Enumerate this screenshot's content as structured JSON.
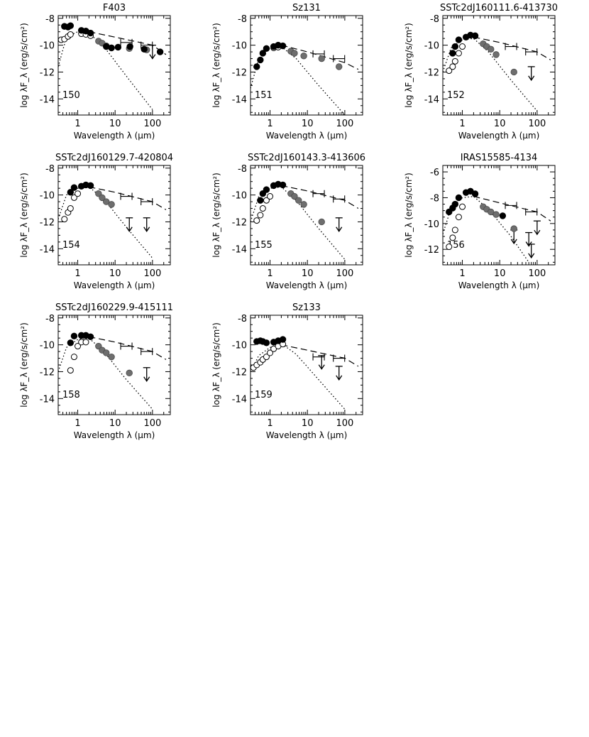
{
  "figure": {
    "xlabel": "Wavelength λ (μm)",
    "ylabel": "log λF_λ (erg/s/cm²)"
  },
  "chart_data": [
    {
      "type": "scatter",
      "title": "F403",
      "panel_number": "150",
      "xlim": [
        0.3,
        300
      ],
      "ylim": [
        -15.2,
        -7.8
      ],
      "xticks": [
        1,
        10,
        100
      ],
      "yticks": [
        -8,
        -10,
        -12,
        -14
      ],
      "observed": [
        [
          0.44,
          -8.6
        ],
        [
          0.55,
          -8.65
        ],
        [
          0.64,
          -8.55
        ],
        [
          1.25,
          -8.9
        ],
        [
          1.65,
          -8.95
        ],
        [
          2.2,
          -9.1
        ],
        [
          5.8,
          -10.1
        ],
        [
          8.0,
          -10.2
        ],
        [
          12,
          -10.15
        ],
        [
          25,
          -10.1
        ],
        [
          60,
          -10.3
        ],
        [
          160,
          -10.5
        ]
      ],
      "dereddened": [
        [
          0.36,
          -9.6
        ],
        [
          0.44,
          -9.55
        ],
        [
          0.55,
          -9.35
        ],
        [
          0.64,
          -9.2
        ],
        [
          1.25,
          -9.15
        ],
        [
          1.65,
          -9.2
        ],
        [
          2.2,
          -9.3
        ]
      ],
      "intermediate": [
        [
          3.6,
          -9.7
        ],
        [
          4.5,
          -9.85
        ],
        [
          5.8,
          -10.05
        ],
        [
          8.0,
          -10.2
        ],
        [
          24,
          -10.25
        ],
        [
          70,
          -10.35
        ]
      ],
      "median_bars": [
        [
          20,
          -9.8
        ],
        [
          70,
          -10.0
        ]
      ],
      "upper_limits": [
        [
          100,
          -10.0
        ]
      ],
      "photosphere": [
        [
          0.3,
          -11.6
        ],
        [
          0.5,
          -9.4
        ],
        [
          1.0,
          -9.0
        ],
        [
          2.0,
          -9.1
        ],
        [
          5,
          -10.1
        ],
        [
          20,
          -12.3
        ],
        [
          100,
          -14.8
        ]
      ],
      "median_line": [
        [
          2.0,
          -9.0
        ],
        [
          10,
          -9.4
        ],
        [
          100,
          -10.0
        ],
        [
          230,
          -10.7
        ]
      ]
    },
    {
      "type": "scatter",
      "title": "Sz131",
      "panel_number": "151",
      "xlim": [
        0.3,
        300
      ],
      "ylim": [
        -15.2,
        -7.8
      ],
      "xticks": [
        1,
        10,
        100
      ],
      "yticks": [
        -8,
        -10,
        -12,
        -14
      ],
      "observed": [
        [
          0.44,
          -11.6
        ],
        [
          0.55,
          -11.1
        ],
        [
          0.64,
          -10.6
        ],
        [
          0.8,
          -10.25
        ],
        [
          1.25,
          -10.1
        ],
        [
          1.65,
          -10.0
        ],
        [
          2.2,
          -10.05
        ]
      ],
      "dereddened": [
        [
          1.25,
          -10.2
        ],
        [
          1.65,
          -10.15
        ]
      ],
      "intermediate": [
        [
          3.6,
          -10.45
        ],
        [
          4.5,
          -10.6
        ],
        [
          8.0,
          -10.8
        ],
        [
          24,
          -11.0
        ],
        [
          70,
          -11.6
        ]
      ],
      "median_bars": [
        [
          20,
          -10.65
        ],
        [
          70,
          -11.0
        ]
      ],
      "upper_limits": [],
      "photosphere": [
        [
          0.3,
          -13.2
        ],
        [
          0.5,
          -11.0
        ],
        [
          1.0,
          -10.2
        ],
        [
          2.0,
          -10.1
        ],
        [
          5,
          -11.0
        ],
        [
          20,
          -13.0
        ],
        [
          100,
          -15.2
        ]
      ],
      "median_line": [
        [
          2.0,
          -10.0
        ],
        [
          10,
          -10.5
        ],
        [
          100,
          -11.3
        ],
        [
          230,
          -11.8
        ]
      ]
    },
    {
      "type": "scatter",
      "title": "SSTc2dJ160111.6-413730",
      "panel_number": "152",
      "xlim": [
        0.3,
        300
      ],
      "ylim": [
        -15.2,
        -7.8
      ],
      "xticks": [
        1,
        10,
        100
      ],
      "yticks": [
        -8,
        -10,
        -12,
        -14
      ],
      "observed": [
        [
          0.55,
          -10.6
        ],
        [
          0.64,
          -10.1
        ],
        [
          0.8,
          -9.6
        ],
        [
          1.25,
          -9.4
        ],
        [
          1.65,
          -9.25
        ],
        [
          2.2,
          -9.3
        ]
      ],
      "dereddened": [
        [
          0.44,
          -11.9
        ],
        [
          0.55,
          -11.6
        ],
        [
          0.64,
          -11.2
        ],
        [
          0.8,
          -10.6
        ],
        [
          1.0,
          -10.1
        ]
      ],
      "intermediate": [
        [
          3.6,
          -9.9
        ],
        [
          4.5,
          -10.1
        ],
        [
          5.8,
          -10.3
        ],
        [
          8.0,
          -10.7
        ],
        [
          24,
          -12.0
        ]
      ],
      "median_bars": [
        [
          20,
          -10.1
        ],
        [
          70,
          -10.5
        ]
      ],
      "upper_limits": [
        [
          70,
          -11.6
        ]
      ],
      "photosphere": [
        [
          0.3,
          -12.0
        ],
        [
          0.5,
          -10.2
        ],
        [
          1.0,
          -9.6
        ],
        [
          2.0,
          -9.5
        ],
        [
          5,
          -10.5
        ],
        [
          20,
          -12.6
        ],
        [
          100,
          -14.9
        ]
      ],
      "median_line": [
        [
          2.0,
          -9.4
        ],
        [
          10,
          -9.8
        ],
        [
          100,
          -10.5
        ],
        [
          230,
          -11.1
        ]
      ]
    },
    {
      "type": "scatter",
      "title": "SSTc2dJ160129.7-420804",
      "panel_number": "154",
      "xlim": [
        0.3,
        300
      ],
      "ylim": [
        -15.2,
        -7.8
      ],
      "xticks": [
        1,
        10,
        100
      ],
      "yticks": [
        -8,
        -10,
        -12,
        -14
      ],
      "observed": [
        [
          0.64,
          -9.8
        ],
        [
          0.8,
          -9.45
        ],
        [
          1.25,
          -9.35
        ],
        [
          1.65,
          -9.25
        ],
        [
          2.2,
          -9.3
        ]
      ],
      "dereddened": [
        [
          0.44,
          -11.8
        ],
        [
          0.55,
          -11.3
        ],
        [
          0.64,
          -11.0
        ],
        [
          0.8,
          -10.2
        ],
        [
          1.0,
          -9.9
        ]
      ],
      "intermediate": [
        [
          3.6,
          -9.9
        ],
        [
          4.5,
          -10.2
        ],
        [
          5.8,
          -10.5
        ],
        [
          8.0,
          -10.7
        ]
      ],
      "median_bars": [
        [
          20,
          -10.1
        ],
        [
          70,
          -10.5
        ]
      ],
      "upper_limits": [
        [
          24,
          -11.7
        ],
        [
          70,
          -11.7
        ]
      ],
      "photosphere": [
        [
          0.3,
          -11.8
        ],
        [
          0.5,
          -10.0
        ],
        [
          1.0,
          -9.5
        ],
        [
          2.0,
          -9.4
        ],
        [
          5,
          -10.3
        ],
        [
          20,
          -12.4
        ],
        [
          100,
          -14.7
        ]
      ],
      "median_line": [
        [
          2.0,
          -9.4
        ],
        [
          10,
          -9.8
        ],
        [
          100,
          -10.5
        ],
        [
          230,
          -11.1
        ]
      ]
    },
    {
      "type": "scatter",
      "title": "SSTc2dJ160143.3-413606",
      "panel_number": "155",
      "xlim": [
        0.3,
        300
      ],
      "ylim": [
        -15.2,
        -7.8
      ],
      "xticks": [
        1,
        10,
        100
      ],
      "yticks": [
        -8,
        -10,
        -12,
        -14
      ],
      "observed": [
        [
          0.55,
          -10.4
        ],
        [
          0.64,
          -9.9
        ],
        [
          0.8,
          -9.6
        ],
        [
          1.25,
          -9.3
        ],
        [
          1.65,
          -9.2
        ],
        [
          2.2,
          -9.25
        ]
      ],
      "dereddened": [
        [
          0.44,
          -11.9
        ],
        [
          0.55,
          -11.5
        ],
        [
          0.64,
          -11.0
        ],
        [
          0.8,
          -10.4
        ],
        [
          1.0,
          -10.1
        ]
      ],
      "intermediate": [
        [
          3.6,
          -9.9
        ],
        [
          4.5,
          -10.1
        ],
        [
          5.8,
          -10.4
        ],
        [
          8.0,
          -10.7
        ],
        [
          24,
          -12.0
        ]
      ],
      "median_bars": [
        [
          20,
          -9.9
        ],
        [
          70,
          -10.3
        ]
      ],
      "upper_limits": [
        [
          70,
          -11.7
        ]
      ],
      "photosphere": [
        [
          0.3,
          -12.0
        ],
        [
          0.5,
          -10.1
        ],
        [
          1.0,
          -9.5
        ],
        [
          2.0,
          -9.4
        ],
        [
          5,
          -10.4
        ],
        [
          20,
          -12.5
        ],
        [
          100,
          -14.8
        ]
      ],
      "median_line": [
        [
          2.0,
          -9.3
        ],
        [
          10,
          -9.7
        ],
        [
          100,
          -10.4
        ],
        [
          230,
          -11.0
        ]
      ]
    },
    {
      "type": "scatter",
      "title": "IRAS15585-4134",
      "panel_number": "156",
      "xlim": [
        0.3,
        300
      ],
      "ylim": [
        -13.2,
        -5.5
      ],
      "xticks": [
        1,
        10,
        100
      ],
      "yticks": [
        -6,
        -8,
        -10,
        -12
      ],
      "observed": [
        [
          0.44,
          -9.1
        ],
        [
          0.55,
          -8.8
        ],
        [
          0.64,
          -8.5
        ],
        [
          0.8,
          -8.0
        ],
        [
          1.25,
          -7.6
        ],
        [
          1.65,
          -7.5
        ],
        [
          2.2,
          -7.7
        ],
        [
          12,
          -9.4
        ]
      ],
      "dereddened": [
        [
          0.44,
          -11.8
        ],
        [
          0.55,
          -11.1
        ],
        [
          0.64,
          -10.5
        ],
        [
          0.8,
          -9.5
        ],
        [
          1.0,
          -8.7
        ]
      ],
      "intermediate": [
        [
          3.6,
          -8.7
        ],
        [
          4.5,
          -8.9
        ],
        [
          5.8,
          -9.1
        ],
        [
          8.0,
          -9.3
        ],
        [
          24,
          -10.4
        ]
      ],
      "median_bars": [
        [
          20,
          -8.6
        ],
        [
          70,
          -9.1
        ]
      ],
      "upper_limits": [
        [
          24,
          -10.5
        ],
        [
          60,
          -10.7
        ],
        [
          70,
          -11.6
        ],
        [
          100,
          -9.8
        ]
      ],
      "photosphere": [
        [
          0.3,
          -10.8
        ],
        [
          0.5,
          -8.8
        ],
        [
          1.0,
          -8.0
        ],
        [
          2.0,
          -7.9
        ],
        [
          5,
          -8.9
        ],
        [
          20,
          -11.0
        ],
        [
          60,
          -13.0
        ]
      ],
      "median_line": [
        [
          2.0,
          -7.9
        ],
        [
          10,
          -8.4
        ],
        [
          100,
          -9.1
        ],
        [
          230,
          -9.8
        ]
      ]
    },
    {
      "type": "scatter",
      "title": "SSTc2dJ160229.9-415111",
      "panel_number": "158",
      "xlim": [
        0.3,
        300
      ],
      "ylim": [
        -15.2,
        -7.8
      ],
      "xticks": [
        1,
        10,
        100
      ],
      "yticks": [
        -8,
        -10,
        -12,
        -14
      ],
      "observed": [
        [
          0.64,
          -9.85
        ],
        [
          0.8,
          -9.35
        ],
        [
          1.25,
          -9.3
        ],
        [
          1.65,
          -9.3
        ],
        [
          2.2,
          -9.4
        ]
      ],
      "dereddened": [
        [
          0.64,
          -11.9
        ],
        [
          0.8,
          -10.9
        ],
        [
          1.0,
          -10.1
        ],
        [
          1.25,
          -9.8
        ],
        [
          1.65,
          -9.8
        ]
      ],
      "intermediate": [
        [
          3.6,
          -10.1
        ],
        [
          4.5,
          -10.4
        ],
        [
          5.8,
          -10.6
        ],
        [
          8.0,
          -10.9
        ],
        [
          24,
          -12.1
        ]
      ],
      "median_bars": [
        [
          20,
          -10.1
        ],
        [
          70,
          -10.5
        ]
      ],
      "upper_limits": [
        [
          70,
          -11.7
        ]
      ],
      "photosphere": [
        [
          0.3,
          -12.0
        ],
        [
          0.5,
          -10.2
        ],
        [
          1.0,
          -9.6
        ],
        [
          2.0,
          -9.5
        ],
        [
          5,
          -10.5
        ],
        [
          20,
          -12.6
        ],
        [
          100,
          -14.8
        ]
      ],
      "median_line": [
        [
          2.0,
          -9.4
        ],
        [
          10,
          -9.8
        ],
        [
          100,
          -10.5
        ],
        [
          230,
          -11.1
        ]
      ]
    },
    {
      "type": "scatter",
      "title": "Sz133",
      "panel_number": "159",
      "xlim": [
        0.3,
        300
      ],
      "ylim": [
        -15.2,
        -7.8
      ],
      "xticks": [
        1,
        10,
        100
      ],
      "yticks": [
        -8,
        -10,
        -12,
        -14
      ],
      "observed": [
        [
          0.44,
          -9.75
        ],
        [
          0.55,
          -9.7
        ],
        [
          0.64,
          -9.75
        ],
        [
          0.8,
          -9.85
        ],
        [
          1.25,
          -9.8
        ],
        [
          1.65,
          -9.7
        ],
        [
          2.2,
          -9.6
        ]
      ],
      "dereddened": [
        [
          0.36,
          -11.7
        ],
        [
          0.44,
          -11.5
        ],
        [
          0.55,
          -11.3
        ],
        [
          0.64,
          -11.1
        ],
        [
          0.8,
          -10.9
        ],
        [
          1.0,
          -10.6
        ],
        [
          1.25,
          -10.3
        ],
        [
          1.65,
          -10.1
        ],
        [
          2.2,
          -9.95
        ]
      ],
      "intermediate": [],
      "median_bars": [
        [
          20,
          -10.9
        ],
        [
          70,
          -11.0
        ]
      ],
      "upper_limits": [
        [
          24,
          -10.8
        ],
        [
          70,
          -11.6
        ]
      ],
      "photosphere": [
        [
          0.3,
          -12.0
        ],
        [
          0.5,
          -10.8
        ],
        [
          1.0,
          -10.2
        ],
        [
          2.0,
          -9.9
        ],
        [
          5,
          -10.7
        ],
        [
          20,
          -12.6
        ],
        [
          100,
          -14.8
        ]
      ],
      "median_line": [
        [
          2.0,
          -10.0
        ],
        [
          10,
          -10.4
        ],
        [
          100,
          -11.0
        ],
        [
          230,
          -11.6
        ]
      ]
    }
  ]
}
